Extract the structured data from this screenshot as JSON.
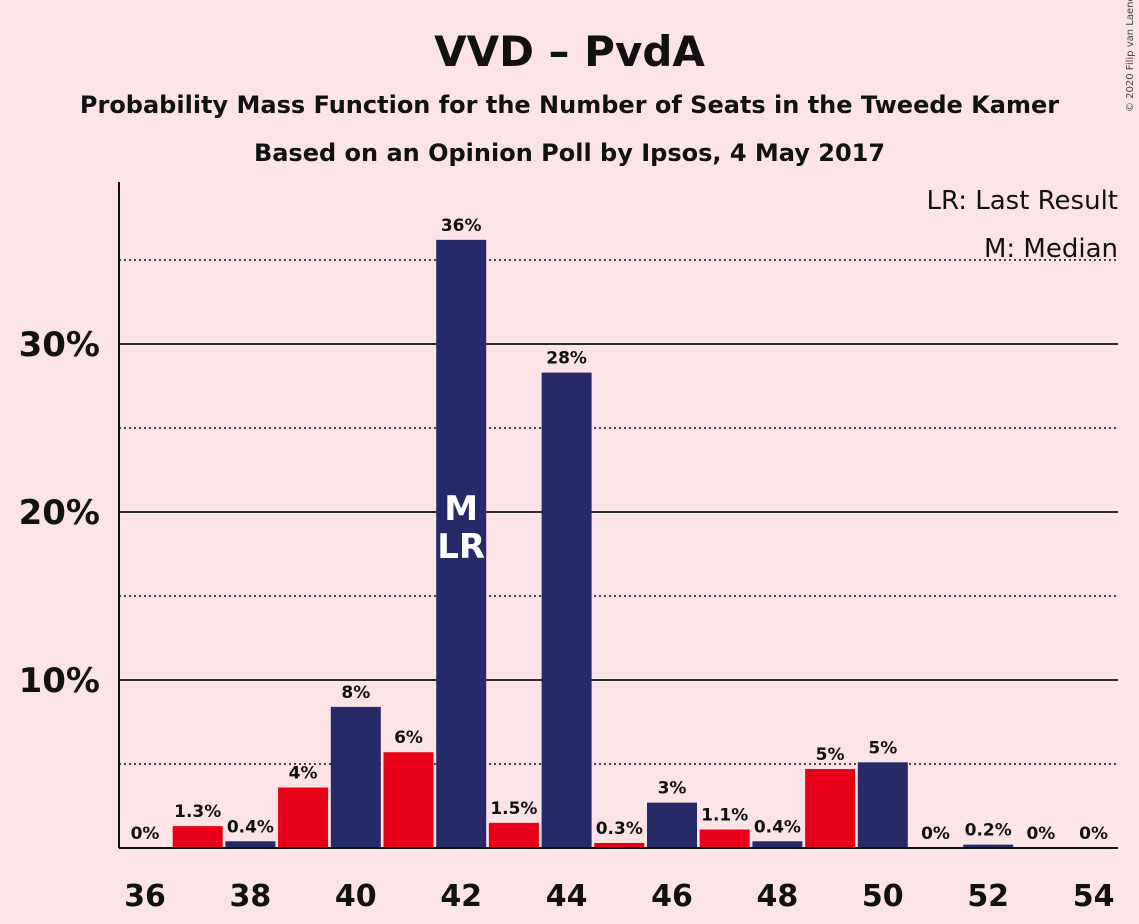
{
  "chart_data": {
    "type": "bar",
    "title": "VVD – PvdA",
    "subtitle": "Probability Mass Function for the Number of Seats in the Tweede Kamer",
    "subtitle2": "Based on an Opinion Poll by Ipsos, 4 May 2017",
    "copyright": "© 2020 Filip van Laenen",
    "legend": {
      "placement": "top-right",
      "lr": "LR: Last Result",
      "m": "M: Median"
    },
    "ylim": [
      0,
      39
    ],
    "yticks": [
      {
        "value": 10,
        "label": "10%"
      },
      {
        "value": 20,
        "label": "20%"
      },
      {
        "value": 30,
        "label": "30%"
      }
    ],
    "minor_grid": [
      5,
      15,
      25,
      35
    ],
    "xlim": [
      36,
      54
    ],
    "xticks": [
      36,
      38,
      40,
      42,
      44,
      46,
      48,
      50,
      52,
      54
    ],
    "bars": [
      {
        "seats": 36,
        "value": 0,
        "label": "0%",
        "color": "#e8001a"
      },
      {
        "seats": 37,
        "value": 1.3,
        "label": "1.3%",
        "color": "#e8001a"
      },
      {
        "seats": 38,
        "value": 0.4,
        "label": "0.4%",
        "color": "#262a68"
      },
      {
        "seats": 39,
        "value": 3.6,
        "label": "4%",
        "color": "#e8001a"
      },
      {
        "seats": 40,
        "value": 8.4,
        "label": "8%",
        "color": "#262a68"
      },
      {
        "seats": 41,
        "value": 5.7,
        "label": "6%",
        "color": "#e8001a"
      },
      {
        "seats": 42,
        "value": 36.2,
        "label": "36%",
        "color": "#262a68"
      },
      {
        "seats": 43,
        "value": 1.5,
        "label": "1.5%",
        "color": "#e8001a"
      },
      {
        "seats": 44,
        "value": 28.3,
        "label": "28%",
        "color": "#262a68"
      },
      {
        "seats": 45,
        "value": 0.3,
        "label": "0.3%",
        "color": "#e8001a"
      },
      {
        "seats": 46,
        "value": 2.7,
        "label": "3%",
        "color": "#262a68"
      },
      {
        "seats": 47,
        "value": 1.1,
        "label": "1.1%",
        "color": "#e8001a"
      },
      {
        "seats": 48,
        "value": 0.4,
        "label": "0.4%",
        "color": "#262a68"
      },
      {
        "seats": 49,
        "value": 4.7,
        "label": "5%",
        "color": "#e8001a"
      },
      {
        "seats": 50,
        "value": 5.1,
        "label": "5%",
        "color": "#262a68"
      },
      {
        "seats": 51,
        "value": 0,
        "label": "0%",
        "color": "#e8001a"
      },
      {
        "seats": 52,
        "value": 0.2,
        "label": "0.2%",
        "color": "#262a68"
      },
      {
        "seats": 53,
        "value": 0,
        "label": "0%",
        "color": "#e8001a"
      },
      {
        "seats": 54,
        "value": 0,
        "label": "0%",
        "color": "#262a68"
      }
    ],
    "median": 42,
    "last_result": 42,
    "markers": {
      "m": "M",
      "lr": "LR"
    }
  }
}
